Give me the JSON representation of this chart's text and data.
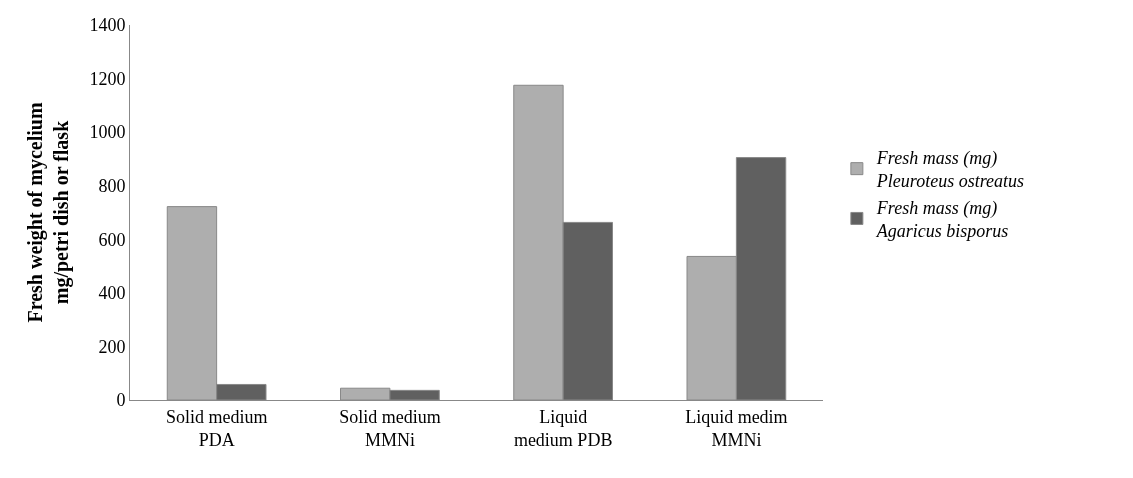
{
  "chart_data": {
    "type": "bar",
    "ylabel": "Fresh weight of mycelium\nmg/petri dish or flask",
    "categories": [
      "Solid medium\nPDA",
      "Solid medium\nMMNi",
      "Liquid\nmedium PDB",
      "Liquid medim\nMMNi"
    ],
    "series": [
      {
        "name": "Fresh mass (mg)\nPleuroteus ostreatus",
        "color": "#aeaeae",
        "values": [
          722,
          44,
          1175,
          536
        ]
      },
      {
        "name": "Fresh mass (mg)\nAgaricus bisporus",
        "color": "#606060",
        "values": [
          58,
          36,
          663,
          905
        ]
      }
    ],
    "ylim": [
      0,
      1400
    ],
    "yticks": [
      0,
      200,
      400,
      600,
      800,
      1000,
      1200,
      1400
    ],
    "grid": false,
    "legend": "right"
  }
}
